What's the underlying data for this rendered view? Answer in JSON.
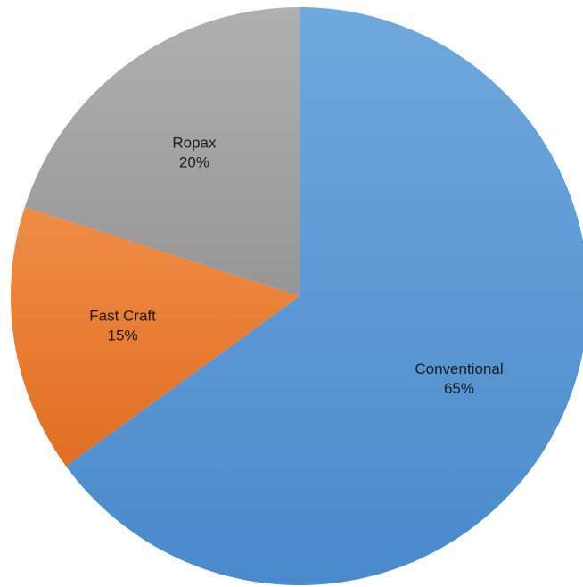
{
  "chart_data": {
    "type": "pie",
    "title": "",
    "start_angle_deg": 0,
    "direction": "clockwise",
    "legend": "none",
    "slices": [
      {
        "name": "Conventional",
        "value": 65,
        "label": "65%",
        "color": "#5b9bd5",
        "color_light": "#6fa8dc",
        "color_dark": "#4a8acb"
      },
      {
        "name": "Fast Craft",
        "value": 15,
        "label": "15%",
        "color": "#ed7d31",
        "color_light": "#f08c45",
        "color_dark": "#e06f22"
      },
      {
        "name": "Ropax",
        "value": 20,
        "label": "20%",
        "color": "#a5a5a5",
        "color_light": "#b0b0b0",
        "color_dark": "#969696"
      }
    ]
  }
}
